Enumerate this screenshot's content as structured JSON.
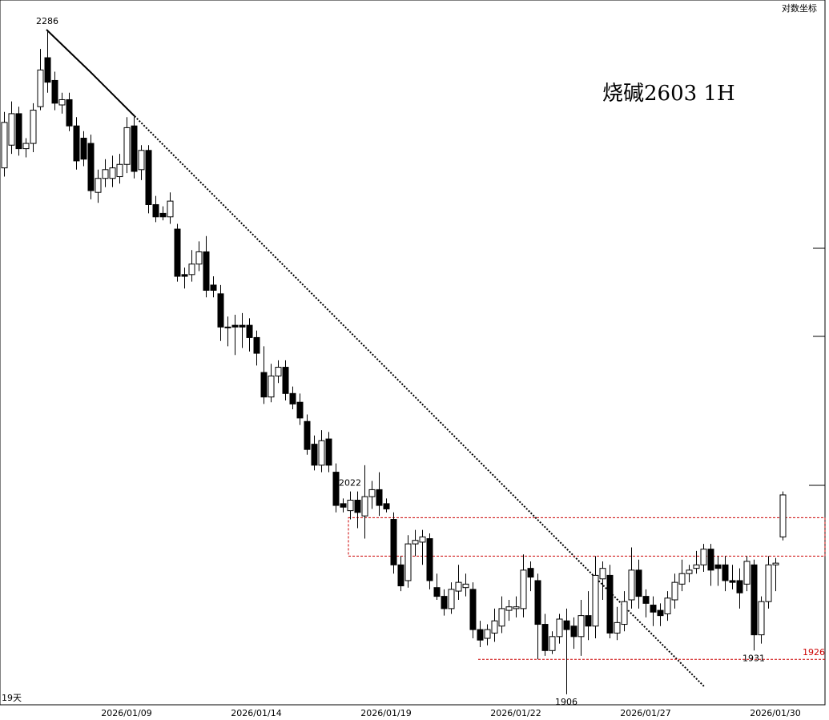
{
  "chart_data": {
    "type": "candlestick",
    "title": "烧碱2603  1H",
    "scale_note": "对数坐标",
    "period_note": "19天",
    "categories": [
      null,
      null,
      null,
      null,
      null,
      null,
      null,
      null,
      null,
      null,
      null,
      null,
      null,
      null,
      null,
      null,
      null,
      "2026/01/09",
      null,
      null,
      null,
      null,
      null,
      null,
      null,
      null,
      null,
      null,
      null,
      null,
      null,
      null,
      null,
      null,
      null,
      "2026/01/14",
      null,
      null,
      null,
      null,
      null,
      null,
      null,
      null,
      null,
      null,
      null,
      null,
      null,
      null,
      null,
      null,
      null,
      "2026/01/19",
      null,
      null,
      null,
      null,
      null,
      null,
      null,
      null,
      null,
      null,
      null,
      null,
      null,
      null,
      null,
      null,
      null,
      "2026/01/22",
      null,
      null,
      null,
      null,
      null,
      null,
      null,
      null,
      null,
      null,
      null,
      null,
      null,
      null,
      null,
      null,
      null,
      "2026/01/27",
      null,
      null,
      null,
      null,
      null,
      null,
      null,
      null,
      null,
      null,
      null,
      null,
      null,
      null,
      null,
      null,
      null,
      "2026/01/30",
      null
    ],
    "open": [
      2207,
      2220,
      2238,
      2218,
      2221,
      2242,
      2270,
      2257,
      2243,
      2246,
      2231,
      2224,
      2221,
      2193,
      2201,
      2201,
      2202,
      2209,
      2231,
      2206,
      2217,
      2186,
      2181,
      2179,
      2172,
      2146,
      2146,
      2152,
      2159,
      2140,
      2135,
      2116,
      2117,
      2117,
      2117,
      2110,
      2090,
      2076,
      2088,
      2093,
      2078,
      2073,
      2062,
      2049,
      2037,
      2052,
      2033,
      2015,
      2011,
      2017,
      2008,
      2019,
      2023,
      2015,
      2006,
      1980,
      1971,
      1992,
      1993,
      1995,
      1967,
      1962,
      1955,
      1965,
      1967,
      1966,
      1943,
      1938,
      1941,
      1945,
      1954,
      1955,
      1955,
      1978,
      1971,
      1946,
      1931,
      1939,
      1948,
      1945,
      1939,
      1951,
      1945,
      1972,
      1974,
      1941,
      1946,
      1960,
      1977,
      1962,
      1957,
      1954,
      1952,
      1960,
      1969,
      1975,
      1978,
      1980,
      1989,
      1980,
      1980,
      1971,
      1971,
      1969,
      1980,
      1940,
      1959,
      1980,
      1996
    ],
    "high": [
      2239,
      2245,
      2242,
      2224,
      2244,
      2275,
      2286,
      2262,
      2250,
      2250,
      2236,
      2228,
      2226,
      2206,
      2212,
      2214,
      2215,
      2236,
      2236,
      2220,
      2220,
      2191,
      2185,
      2193,
      2175,
      2150,
      2160,
      2165,
      2168,
      2145,
      2140,
      2122,
      2123,
      2124,
      2121,
      2114,
      2105,
      2095,
      2097,
      2097,
      2082,
      2078,
      2066,
      2054,
      2057,
      2056,
      2038,
      2018,
      2022,
      2022,
      2037,
      2028,
      2033,
      2018,
      2010,
      1985,
      1997,
      2000,
      2000,
      1998,
      1975,
      1966,
      1970,
      1980,
      1975,
      1970,
      1948,
      1946,
      1955,
      1962,
      1960,
      1962,
      1986,
      1982,
      1975,
      1952,
      1942,
      1952,
      1955,
      1950,
      1960,
      1965,
      1985,
      1982,
      1980,
      1956,
      1965,
      1990,
      1983,
      1966,
      1962,
      1958,
      1965,
      1975,
      1983,
      1980,
      1988,
      1992,
      1992,
      1985,
      1985,
      1980,
      1978,
      1985,
      1983,
      1962,
      1985,
      1984,
      2022
    ],
    "low": [
      2202,
      2215,
      2214,
      2213,
      2216,
      2240,
      2250,
      2240,
      2238,
      2228,
      2206,
      2208,
      2189,
      2187,
      2196,
      2196,
      2198,
      2204,
      2201,
      2200,
      2181,
      2176,
      2177,
      2175,
      2142,
      2138,
      2142,
      2148,
      2133,
      2133,
      2108,
      2105,
      2100,
      2104,
      2102,
      2094,
      2072,
      2073,
      2084,
      2074,
      2069,
      2060,
      2043,
      2034,
      2033,
      2033,
      2010,
      2010,
      2006,
      2001,
      1995,
      2012,
      2008,
      2010,
      1975,
      1965,
      1967,
      1985,
      1980,
      1966,
      1960,
      1951,
      1952,
      1960,
      1962,
      1938,
      1933,
      1934,
      1936,
      1941,
      1948,
      1950,
      1950,
      1965,
      1926,
      1928,
      1929,
      1935,
      1906,
      1932,
      1928,
      1937,
      1938,
      1960,
      1938,
      1937,
      1942,
      1955,
      1955,
      1950,
      1945,
      1945,
      1948,
      1955,
      1965,
      1970,
      1975,
      1976,
      1968,
      1968,
      1965,
      1966,
      1955,
      1965,
      1931,
      1935,
      1955,
      1965,
      1994
    ],
    "close": [
      2233,
      2238,
      2218,
      2221,
      2240,
      2263,
      2256,
      2244,
      2246,
      2231,
      2211,
      2212,
      2194,
      2201,
      2206,
      2207,
      2209,
      2230,
      2205,
      2217,
      2186,
      2179,
      2179,
      2188,
      2145,
      2145,
      2152,
      2159,
      2137,
      2137,
      2116,
      2116,
      2116,
      2116,
      2110,
      2101,
      2076,
      2088,
      2093,
      2078,
      2072,
      2064,
      2046,
      2037,
      2051,
      2037,
      2014,
      2013,
      2017,
      2010,
      2019,
      2023,
      2014,
      2012,
      1980,
      1968,
      1992,
      1994,
      1996,
      1971,
      1962,
      1955,
      1966,
      1970,
      1969,
      1943,
      1937,
      1943,
      1948,
      1955,
      1956,
      1956,
      1977,
      1973,
      1946,
      1931,
      1939,
      1949,
      1943,
      1939,
      1951,
      1945,
      1974,
      1978,
      1941,
      1947,
      1959,
      1977,
      1962,
      1958,
      1953,
      1951,
      1961,
      1970,
      1975,
      1977,
      1980,
      1989,
      1977,
      1978,
      1971,
      1970,
      1964,
      1982,
      1940,
      1959,
      1980,
      1981,
      2020
    ],
    "up_color": "#ffffff",
    "down_color": "#000000",
    "ylim": [
      1900,
      2303
    ],
    "annotations": [
      "2286",
      "2022",
      "1931",
      "1906"
    ],
    "support": {
      "value": 1926,
      "label": "1926",
      "color": "#cc0000"
    },
    "zone": {
      "low": 1985,
      "high": 2007,
      "color": "#cc0000"
    }
  }
}
